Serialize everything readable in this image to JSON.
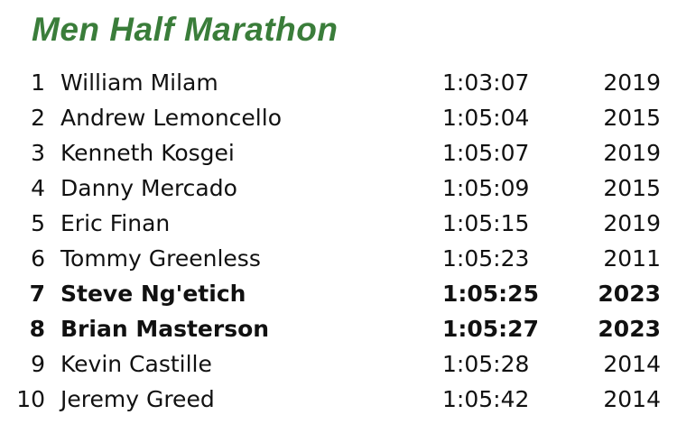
{
  "header": {
    "title": "Men Half Marathon"
  },
  "table": {
    "rows": [
      {
        "rank": 1,
        "name": "William Milam",
        "time": "1:03:07",
        "year": 2019,
        "bold": false
      },
      {
        "rank": 2,
        "name": "Andrew Lemoncello",
        "time": "1:05:04",
        "year": 2015,
        "bold": false
      },
      {
        "rank": 3,
        "name": "Kenneth Kosgei",
        "time": "1:05:07",
        "year": 2019,
        "bold": false
      },
      {
        "rank": 4,
        "name": "Danny Mercado",
        "time": "1:05:09",
        "year": 2015,
        "bold": false
      },
      {
        "rank": 5,
        "name": "Eric Finan",
        "time": "1:05:15",
        "year": 2019,
        "bold": false
      },
      {
        "rank": 6,
        "name": "Tommy Greenless",
        "time": "1:05:23",
        "year": 2011,
        "bold": false
      },
      {
        "rank": 7,
        "name": "Steve Ng'etich",
        "time": "1:05:25",
        "year": 2023,
        "bold": true
      },
      {
        "rank": 8,
        "name": "Brian Masterson",
        "time": "1:05:27",
        "year": 2023,
        "bold": true
      },
      {
        "rank": 9,
        "name": "Kevin Castille",
        "time": "1:05:28",
        "year": 2014,
        "bold": false
      },
      {
        "rank": 10,
        "name": "Jeremy Greed",
        "time": "1:05:42",
        "year": 2014,
        "bold": false
      }
    ]
  }
}
